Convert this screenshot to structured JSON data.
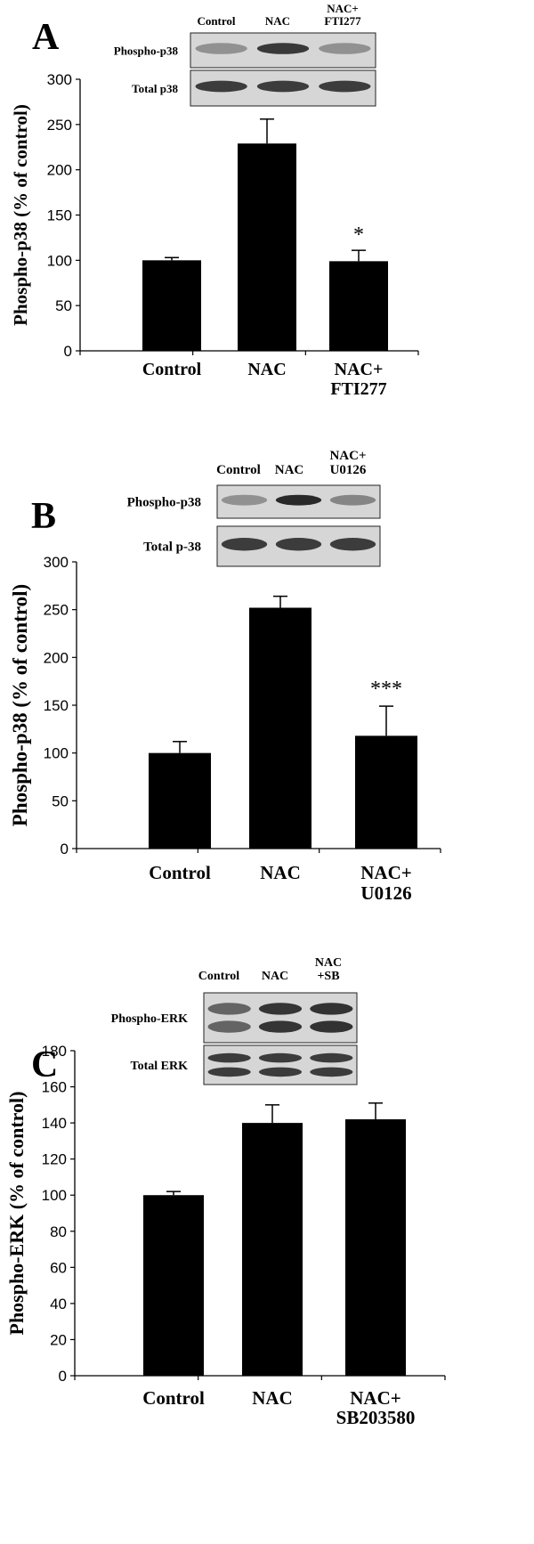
{
  "chart_data": [
    {
      "panel": "A",
      "type": "bar",
      "categories": [
        [
          "Control"
        ],
        [
          "NAC"
        ],
        [
          "NAC+",
          "FTI277"
        ]
      ],
      "values": [
        100,
        229,
        99
      ],
      "errors": [
        3,
        27,
        12
      ],
      "annotations": [
        "",
        "",
        "*"
      ],
      "ylabel": "Phospho-p38 (% of control)",
      "ylim": [
        0,
        300
      ],
      "yticks": [
        0,
        50,
        100,
        150,
        200,
        250,
        300
      ],
      "blot": {
        "lane_labels": [
          [
            "Control"
          ],
          [
            "NAC"
          ],
          [
            "NAC+",
            "FTI277"
          ]
        ],
        "rows": [
          "Phospho-p38",
          "Total p38"
        ]
      }
    },
    {
      "panel": "B",
      "type": "bar",
      "categories": [
        [
          "Control"
        ],
        [
          "NAC"
        ],
        [
          "NAC+",
          "U0126"
        ]
      ],
      "values": [
        100,
        252,
        118
      ],
      "errors": [
        12,
        12,
        31
      ],
      "annotations": [
        "",
        "",
        "***"
      ],
      "ylabel": "Phospho-p38 (% of control)",
      "ylim": [
        0,
        300
      ],
      "yticks": [
        0,
        50,
        100,
        150,
        200,
        250,
        300
      ],
      "blot": {
        "lane_labels": [
          [
            "Control"
          ],
          [
            "NAC"
          ],
          [
            "NAC+",
            "U0126"
          ]
        ],
        "rows": [
          "Phospho-p38",
          "Total p-38"
        ]
      }
    },
    {
      "panel": "C",
      "type": "bar",
      "categories": [
        [
          "Control"
        ],
        [
          "NAC"
        ],
        [
          "NAC+",
          "SB203580"
        ]
      ],
      "values": [
        100,
        140,
        142
      ],
      "errors": [
        2,
        10,
        9
      ],
      "annotations": [
        "",
        "",
        ""
      ],
      "ylabel": "Phospho-ERK (% of control)",
      "ylim": [
        0,
        180
      ],
      "yticks": [
        0,
        20,
        40,
        60,
        80,
        100,
        120,
        140,
        160,
        180
      ],
      "blot": {
        "lane_labels": [
          [
            "Control"
          ],
          [
            "NAC"
          ],
          [
            "NAC",
            "+SB"
          ]
        ],
        "rows": [
          "Phospho-ERK",
          "Total ERK"
        ]
      }
    }
  ]
}
